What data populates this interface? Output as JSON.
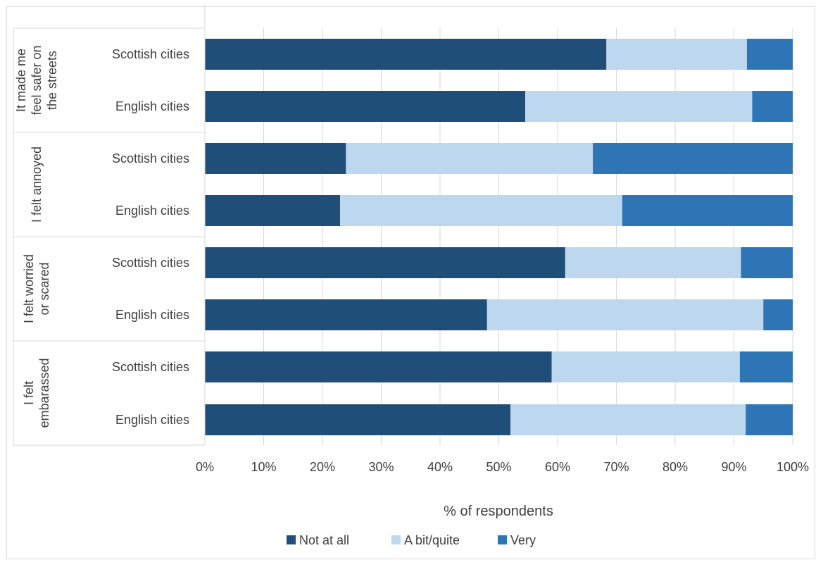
{
  "chart_data": {
    "type": "bar",
    "orientation": "horizontal",
    "stacked": "percent",
    "xlabel": "% of respondents",
    "xlim": [
      0,
      100
    ],
    "x_ticks": [
      "0%",
      "10%",
      "20%",
      "30%",
      "40%",
      "50%",
      "60%",
      "70%",
      "80%",
      "90%",
      "100%"
    ],
    "grid": true,
    "legend_position": "bottom",
    "groups": [
      {
        "label_lines": [
          "It made me",
          "feel safer on",
          "the streets"
        ],
        "categories": [
          "Scottish cities",
          "English cities"
        ]
      },
      {
        "label_lines": [
          "I felt annoyed"
        ],
        "categories": [
          "Scottish cities",
          "English cities"
        ]
      },
      {
        "label_lines": [
          "I felt worried",
          "or scared"
        ],
        "categories": [
          "Scottish cities",
          "English cities"
        ]
      },
      {
        "label_lines": [
          "I felt",
          "embarassed"
        ],
        "categories": [
          "Scottish cities",
          "English cities"
        ]
      }
    ],
    "series": [
      {
        "name": "Not at all",
        "color": "#1f4e79",
        "values": [
          68.3,
          54.5,
          24,
          23,
          61.3,
          48,
          59,
          52
        ]
      },
      {
        "name": "A bit/quite",
        "color": "#bdd7ee",
        "values": [
          23.9,
          38.6,
          42,
          48,
          29.9,
          47,
          32,
          40
        ]
      },
      {
        "name": "Very",
        "color": "#2e75b6",
        "values": [
          7.8,
          6.9,
          34,
          29,
          8.8,
          5,
          9,
          8
        ]
      }
    ]
  }
}
